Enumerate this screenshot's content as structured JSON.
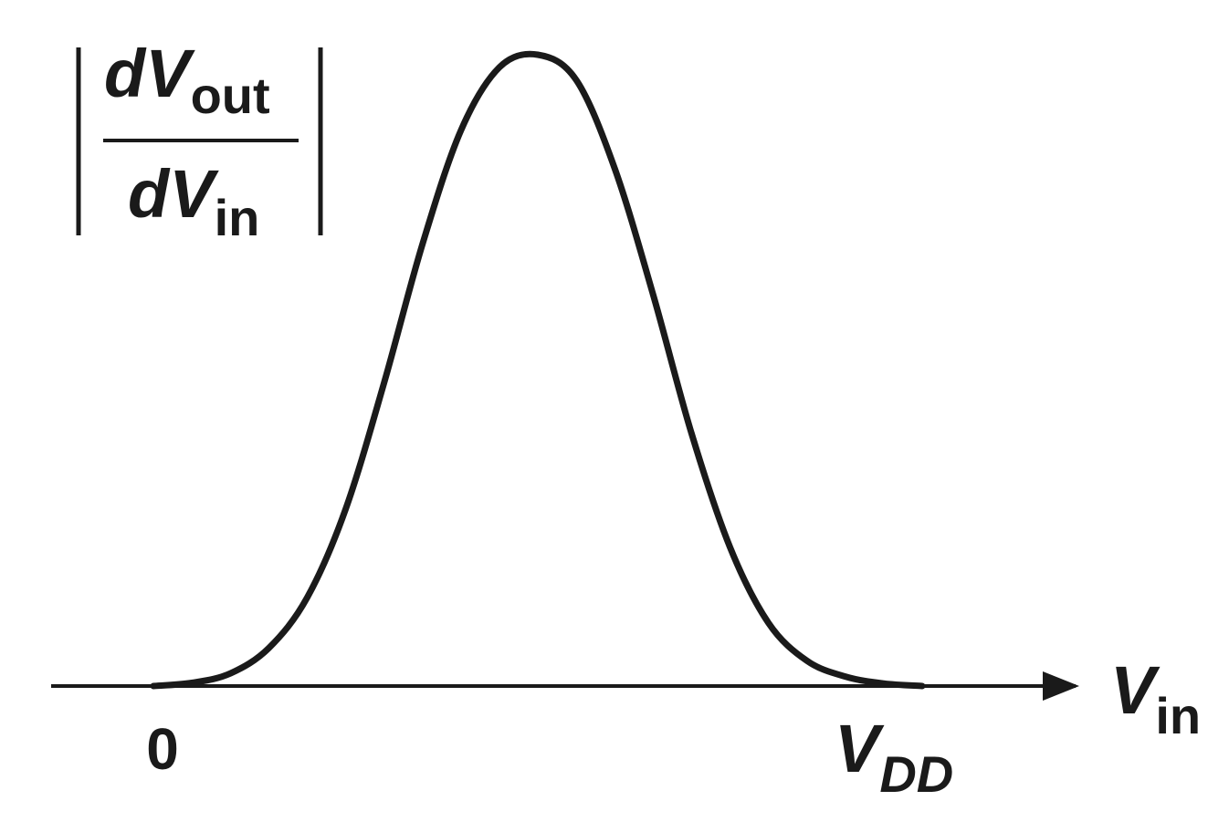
{
  "chart_data": {
    "type": "line",
    "title": "",
    "ylabel": {
      "numerator": {
        "main": "dV",
        "sub": "out"
      },
      "denominator": {
        "main": "dV",
        "sub": "in"
      }
    },
    "xlabel": {
      "main": "V",
      "sub": "in"
    },
    "x_ticks": [
      {
        "value": 0,
        "label": "0"
      },
      {
        "value": 1,
        "label": {
          "main": "V",
          "sub": "DD"
        }
      }
    ],
    "xlim": [
      0,
      1
    ],
    "ylim": [
      0,
      1
    ],
    "grid": false,
    "series": [
      {
        "x": [
          0,
          0.05,
          0.1,
          0.15,
          0.2,
          0.25,
          0.3,
          0.35,
          0.4,
          0.45,
          0.5,
          0.55,
          0.6,
          0.65,
          0.7,
          0.75,
          0.8,
          0.85,
          0.9,
          0.95,
          1.0
        ],
        "y": [
          0,
          0.005,
          0.02,
          0.06,
          0.14,
          0.28,
          0.48,
          0.7,
          0.88,
          0.98,
          1.0,
          0.96,
          0.82,
          0.62,
          0.4,
          0.22,
          0.1,
          0.04,
          0.015,
          0.004,
          0
        ],
        "color": "#1a1a1a"
      }
    ]
  }
}
